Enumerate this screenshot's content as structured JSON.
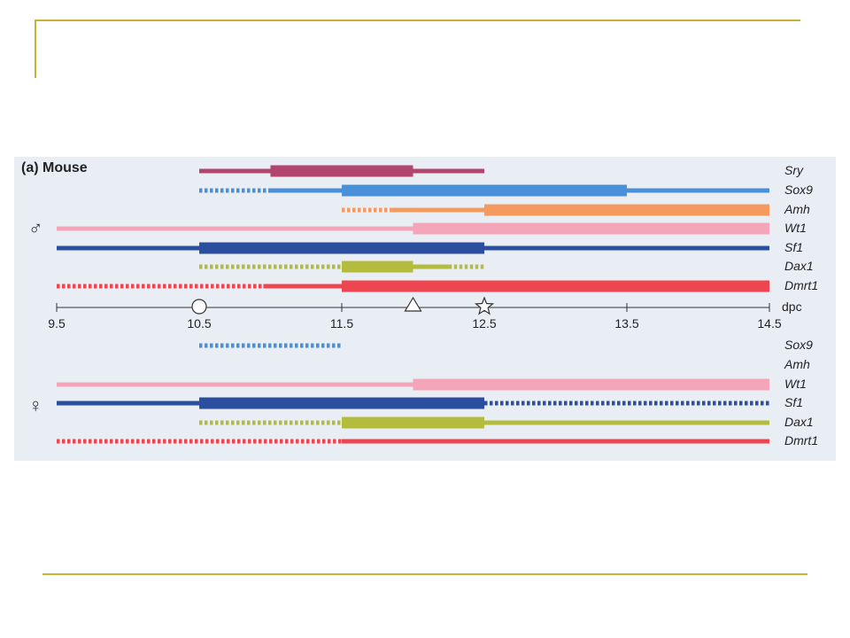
{
  "panel_title": "(a) Mouse",
  "axis": {
    "ticks": [
      "9.5",
      "10.5",
      "11.5",
      "12.5",
      "13.5",
      "14.5"
    ],
    "unit": "dpc",
    "domain": [
      9.5,
      14.5
    ],
    "markers": [
      {
        "shape": "circle",
        "at": 10.5
      },
      {
        "shape": "triangle",
        "at": 12.0
      },
      {
        "shape": "star",
        "at": 12.5
      }
    ]
  },
  "male": {
    "symbol": "♂",
    "genes": [
      {
        "name": "Sry",
        "color": "#b2456e",
        "segments": [
          {
            "from": 10.5,
            "to": 11.0,
            "style": "thin"
          },
          {
            "from": 11.0,
            "to": 12.0,
            "style": "thick"
          },
          {
            "from": 12.0,
            "to": 12.5,
            "style": "thin"
          }
        ]
      },
      {
        "name": "Sox9",
        "color": "#4a90d9",
        "segments": [
          {
            "from": 10.5,
            "to": 11.0,
            "style": "dotted"
          },
          {
            "from": 11.0,
            "to": 11.5,
            "style": "thin"
          },
          {
            "from": 11.5,
            "to": 13.5,
            "style": "thick"
          },
          {
            "from": 13.5,
            "to": 14.5,
            "style": "thin"
          }
        ]
      },
      {
        "name": "Amh",
        "color": "#f59a5e",
        "segments": [
          {
            "from": 11.5,
            "to": 11.85,
            "style": "dotted"
          },
          {
            "from": 11.85,
            "to": 12.5,
            "style": "thin"
          },
          {
            "from": 12.5,
            "to": 14.5,
            "style": "thick"
          }
        ]
      },
      {
        "name": "Wt1",
        "color": "#f4a6b8",
        "segments": [
          {
            "from": 9.5,
            "to": 12.0,
            "style": "thin"
          },
          {
            "from": 12.0,
            "to": 14.5,
            "style": "thick"
          }
        ]
      },
      {
        "name": "Sf1",
        "color": "#2b4e9e",
        "segments": [
          {
            "from": 9.5,
            "to": 10.5,
            "style": "thin"
          },
          {
            "from": 10.5,
            "to": 12.5,
            "style": "thick"
          },
          {
            "from": 12.5,
            "to": 14.5,
            "style": "thin"
          }
        ]
      },
      {
        "name": "Dax1",
        "color": "#b3bc3c",
        "segments": [
          {
            "from": 10.5,
            "to": 11.5,
            "style": "dotted"
          },
          {
            "from": 11.5,
            "to": 12.0,
            "style": "thick"
          },
          {
            "from": 12.0,
            "to": 12.25,
            "style": "thin"
          },
          {
            "from": 12.25,
            "to": 12.5,
            "style": "dotted"
          }
        ]
      },
      {
        "name": "Dmrt1",
        "color": "#ee4650",
        "segments": [
          {
            "from": 9.5,
            "to": 10.95,
            "style": "dotted"
          },
          {
            "from": 10.95,
            "to": 11.5,
            "style": "thin"
          },
          {
            "from": 11.5,
            "to": 14.5,
            "style": "thick"
          }
        ]
      }
    ]
  },
  "female": {
    "symbol": "♀",
    "genes": [
      {
        "name": "Sox9",
        "color": "#4a90d9",
        "segments": [
          {
            "from": 10.5,
            "to": 11.5,
            "style": "dotted"
          }
        ]
      },
      {
        "name": "Amh",
        "color": "#f59a5e",
        "segments": []
      },
      {
        "name": "Wt1",
        "color": "#f4a6b8",
        "segments": [
          {
            "from": 9.5,
            "to": 12.0,
            "style": "thin"
          },
          {
            "from": 12.0,
            "to": 14.5,
            "style": "thick"
          }
        ]
      },
      {
        "name": "Sf1",
        "color": "#2b4e9e",
        "segments": [
          {
            "from": 9.5,
            "to": 10.5,
            "style": "thin"
          },
          {
            "from": 10.5,
            "to": 12.5,
            "style": "thick"
          },
          {
            "from": 12.5,
            "to": 14.5,
            "style": "dotted"
          }
        ]
      },
      {
        "name": "Dax1",
        "color": "#b3bc3c",
        "segments": [
          {
            "from": 10.5,
            "to": 11.5,
            "style": "dotted"
          },
          {
            "from": 11.5,
            "to": 12.5,
            "style": "thick"
          },
          {
            "from": 12.5,
            "to": 14.5,
            "style": "thin"
          }
        ]
      },
      {
        "name": "Dmrt1",
        "color": "#ee4650",
        "segments": [
          {
            "from": 9.5,
            "to": 11.5,
            "style": "dotted"
          },
          {
            "from": 11.5,
            "to": 14.5,
            "style": "thin"
          }
        ]
      }
    ]
  }
}
